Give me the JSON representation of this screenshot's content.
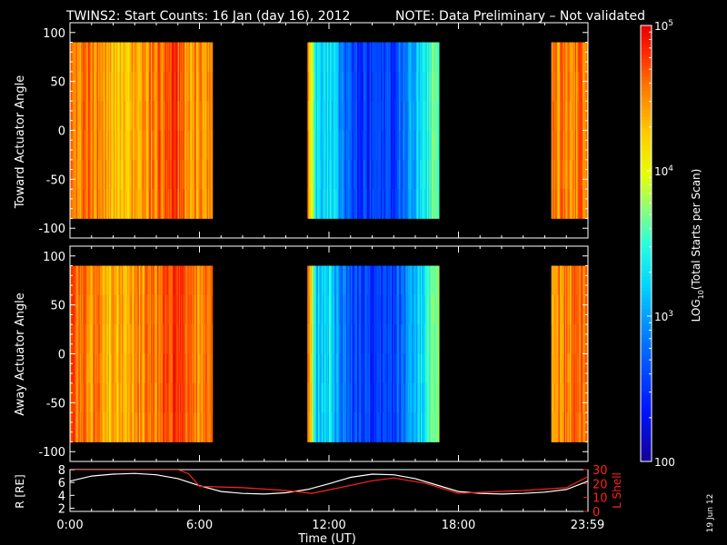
{
  "title": {
    "main": "TWINS2: Start Counts: 16 Jan (day  16), 2012",
    "note": "NOTE: Data Preliminary – Not validated",
    "note_color": "#ff2020"
  },
  "stamp": "19 Jun 12",
  "colorbar": {
    "label": "LOG10(Total Starts per Scan)",
    "label_main": "LOG",
    "label_sub": "10",
    "label_rest": "(Total Starts per Scan)",
    "ticks": [
      {
        "value": 100,
        "text": "100"
      },
      {
        "value": 1000,
        "text": "10",
        "sup": "3"
      },
      {
        "value": 10000,
        "text": "10",
        "sup": "4"
      },
      {
        "value": 100000,
        "text": "10",
        "sup": "5"
      }
    ],
    "range": [
      100,
      100000
    ],
    "scale": "log"
  },
  "chart_data": [
    {
      "type": "heatmap",
      "name": "toward",
      "ylabel": "Toward Actuator Angle",
      "ylim": [
        -110,
        110
      ],
      "yticks": [
        "100",
        "50",
        "0",
        "-50",
        "-100"
      ],
      "ytick_values": [
        100,
        50,
        0,
        -50,
        -100
      ],
      "data_ylim": [
        -90,
        90
      ],
      "data_intervals_hours": [
        [
          0.0,
          6.6
        ],
        [
          11.0,
          17.1
        ],
        [
          22.3,
          24.0
        ]
      ],
      "level_log10_by_hour": [
        [
          0.0,
          4.5
        ],
        [
          1.0,
          4.6
        ],
        [
          2.0,
          4.3
        ],
        [
          3.0,
          4.4
        ],
        [
          4.0,
          4.6
        ],
        [
          5.0,
          4.7
        ],
        [
          6.0,
          4.4
        ],
        [
          11.0,
          4.6
        ],
        [
          11.4,
          3.2
        ],
        [
          12.0,
          3.3
        ],
        [
          13.0,
          2.6
        ],
        [
          14.0,
          2.5
        ],
        [
          15.0,
          2.6
        ],
        [
          16.0,
          3.1
        ],
        [
          17.0,
          3.8
        ],
        [
          22.3,
          4.5
        ],
        [
          24.0,
          4.6
        ]
      ]
    },
    {
      "type": "heatmap",
      "name": "away",
      "ylabel": "Away Actuator Angle",
      "ylim": [
        -110,
        110
      ],
      "yticks": [
        "100",
        "50",
        "0",
        "-50",
        "-100"
      ],
      "ytick_values": [
        100,
        50,
        0,
        -50,
        -100
      ],
      "data_ylim": [
        -90,
        90
      ],
      "data_intervals_hours": [
        [
          0.0,
          6.6
        ],
        [
          11.0,
          17.1
        ],
        [
          22.3,
          24.0
        ]
      ],
      "level_log10_by_hour": [
        [
          0.0,
          4.6
        ],
        [
          1.0,
          4.5
        ],
        [
          2.0,
          4.3
        ],
        [
          3.0,
          4.4
        ],
        [
          4.0,
          4.6
        ],
        [
          5.0,
          4.7
        ],
        [
          6.0,
          4.5
        ],
        [
          11.0,
          4.6
        ],
        [
          11.4,
          3.2
        ],
        [
          12.0,
          3.3
        ],
        [
          13.0,
          2.6
        ],
        [
          14.0,
          2.5
        ],
        [
          15.0,
          2.6
        ],
        [
          16.0,
          3.1
        ],
        [
          17.0,
          3.8
        ],
        [
          22.3,
          4.5
        ],
        [
          24.0,
          4.6
        ]
      ]
    },
    {
      "type": "line",
      "name": "orbit",
      "xlabel": "Time (UT)",
      "xticks": [
        "0:00",
        "6:00",
        "12:00",
        "18:00",
        "23:59"
      ],
      "xtick_hours": [
        0,
        6,
        12,
        18,
        23.98
      ],
      "xlim": [
        0,
        24
      ],
      "left_axis": {
        "label": "R [RE]",
        "ylim": [
          1.5,
          8
        ],
        "ticks": [
          "2",
          "4",
          "6",
          "8"
        ],
        "tick_values": [
          2,
          4,
          6,
          8
        ],
        "color": "#ffffff"
      },
      "right_axis": {
        "label": "L Shell",
        "ylim": [
          0,
          30
        ],
        "ticks": [
          "0",
          "10",
          "20",
          "30"
        ],
        "tick_values": [
          0,
          10,
          20,
          30
        ],
        "color": "#ff2020"
      },
      "series": [
        {
          "axis": "left",
          "color": "#ffffff",
          "x": [
            0,
            1,
            2,
            3,
            4,
            5,
            6,
            7,
            8,
            9,
            10,
            11,
            12,
            13,
            14,
            15,
            16,
            17,
            18,
            19,
            20,
            21,
            22,
            23,
            24
          ],
          "y": [
            6.2,
            7.0,
            7.3,
            7.4,
            7.2,
            6.6,
            5.5,
            4.6,
            4.3,
            4.2,
            4.4,
            4.9,
            5.8,
            6.8,
            7.3,
            7.2,
            6.6,
            5.6,
            4.6,
            4.3,
            4.2,
            4.3,
            4.5,
            4.9,
            6.2
          ]
        },
        {
          "axis": "right",
          "color": "#ff2020",
          "x": [
            0,
            0.5,
            5.0,
            5.5,
            6.0,
            8.0,
            10.0,
            11.2,
            12.5,
            14.0,
            15.0,
            16.5,
            18.0,
            19.5,
            21.0,
            23.0,
            24.0
          ],
          "y": [
            30,
            30,
            30,
            27,
            18,
            17,
            15,
            13,
            17,
            22,
            24,
            20,
            13,
            14,
            15,
            17,
            25
          ]
        }
      ]
    }
  ]
}
